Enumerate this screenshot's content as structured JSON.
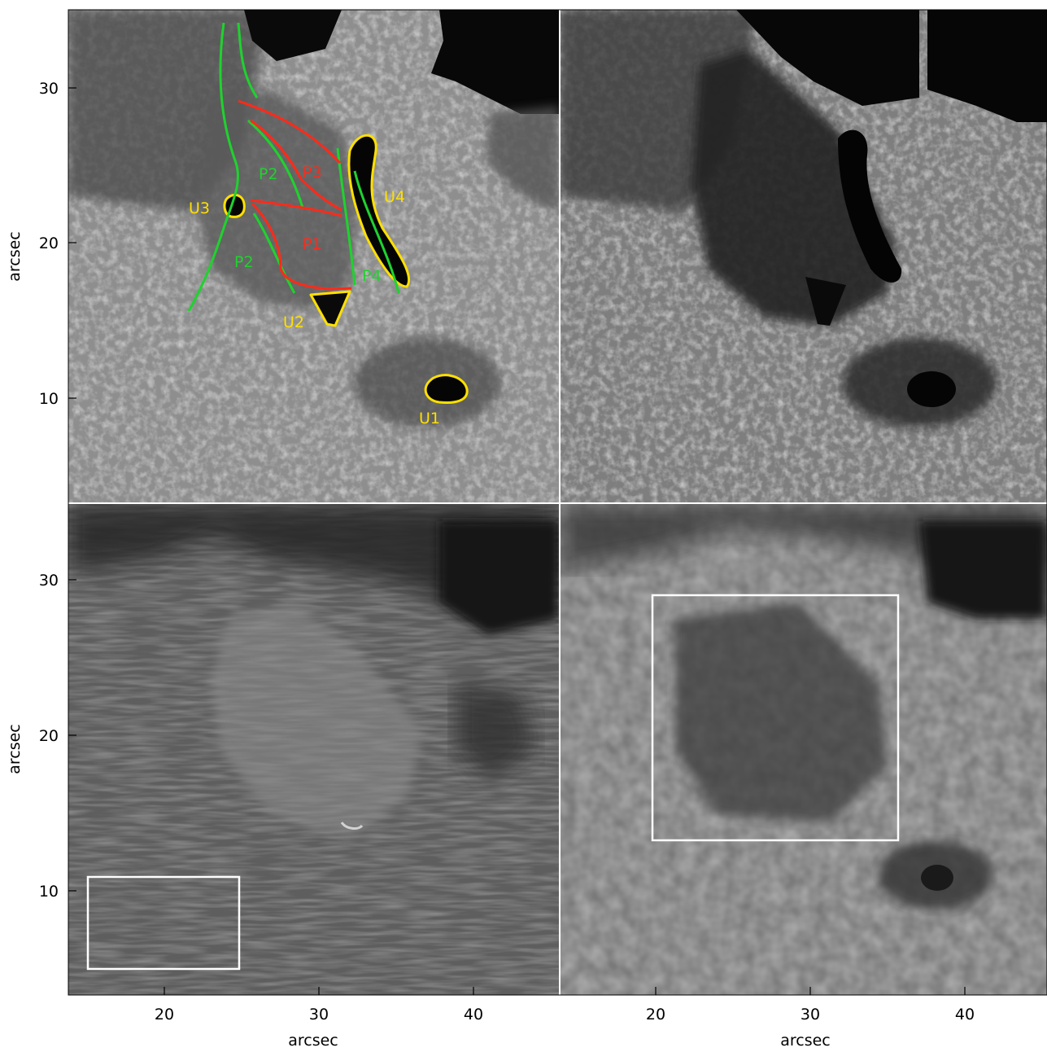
{
  "figure": {
    "x_axis_title": "arcsec",
    "y_axis_title": "arcsec",
    "x_ticks": [
      "20",
      "30",
      "40"
    ],
    "y_ticks": [
      "30",
      "20",
      "10"
    ],
    "colors": {
      "umbra_contour": "#ffe000",
      "penumbra_green": "#1fd22e",
      "penumbra_red": "#ff2a1a",
      "box": "#ffffff"
    }
  },
  "panels": [
    {
      "name": "top-left"
    },
    {
      "name": "top-right"
    },
    {
      "name": "bottom-left"
    },
    {
      "name": "bottom-right"
    }
  ],
  "labels": {
    "U1": "U1",
    "U2": "U2",
    "U3": "U3",
    "U4": "U4",
    "P1": "P1",
    "P2a": "P2",
    "P2b": "P2",
    "P3": "P3",
    "P4": "P4"
  }
}
